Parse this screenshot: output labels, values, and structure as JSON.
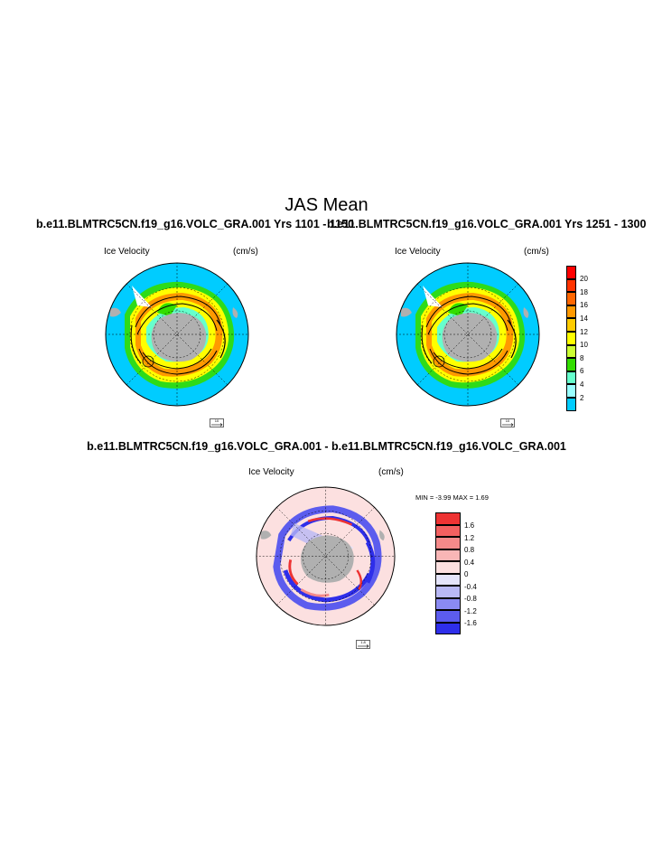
{
  "page_title": "JAS Mean",
  "panels": [
    {
      "run_title": "b.e11.BLMTRC5CN.f19_g16.VOLC_GRA.001  Yrs 1101 - 1150",
      "left_label": "Ice Velocity",
      "right_label": "(cm/s)",
      "ref_vector": "10"
    },
    {
      "run_title": "b.e11.BLMTRC5CN.f19_g16.VOLC_GRA.001  Yrs 1251 - 1300",
      "left_label": "Ice Velocity",
      "right_label": "(cm/s)",
      "ref_vector": "10"
    }
  ],
  "diff_panel": {
    "title": "b.e11.BLMTRC5CN.f19_g16.VOLC_GRA.001 - b.e11.BLMTRC5CN.f19_g16.VOLC_GRA.001",
    "left_label": "Ice Velocity",
    "right_label": "(cm/s)",
    "minmax_text": "MIN =  -3.99 MAX =   1.69",
    "ref_vector": "1.8"
  },
  "colorbar_speed": {
    "labels": [
      "20",
      "18",
      "16",
      "14",
      "12",
      "10",
      "8",
      "6",
      "4",
      "2"
    ],
    "colors": [
      "#ff0000",
      "#ff3300",
      "#ff6600",
      "#ff9900",
      "#ffcc00",
      "#ffff00",
      "#ccff33",
      "#33dd00",
      "#66ffcc",
      "#99ffff",
      "#00ccff"
    ]
  },
  "colorbar_diff": {
    "labels": [
      "1.6",
      "1.2",
      "0.8",
      "0.4",
      "0",
      "-0.4",
      "-0.8",
      "-1.2",
      "-1.6"
    ],
    "colors": [
      "#ee3333",
      "#f26060",
      "#f58a8a",
      "#f9b6b6",
      "#fce0e0",
      "#e4e4fa",
      "#b8b8f5",
      "#8a8af2",
      "#5c5cee",
      "#2e2eea"
    ]
  }
}
